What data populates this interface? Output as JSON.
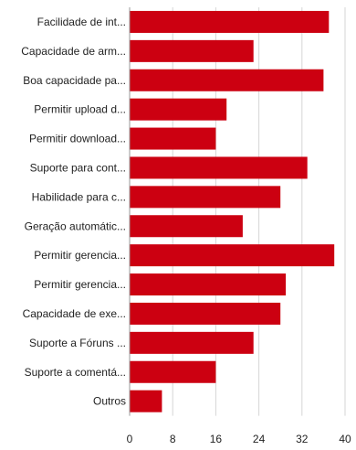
{
  "chart_data": {
    "type": "bar",
    "orientation": "horizontal",
    "categories": [
      "Facilidade de int...",
      "Capacidade de arm...",
      "Boa capacidade pa...",
      "Permitir upload d...",
      "Permitir download...",
      "Suporte para cont...",
      "Habilidade para c...",
      "Geração automátic...",
      "Permitir gerencia...",
      "Permitir gerencia...",
      "Capacidade de exe...",
      "Suporte a Fóruns ...",
      "Suporte a comentá...",
      "Outros"
    ],
    "values": [
      37,
      23,
      36,
      18,
      16,
      33,
      28,
      21,
      38,
      29,
      28,
      23,
      16,
      6
    ],
    "xlim": [
      0,
      40
    ],
    "xticks": [
      0,
      8,
      16,
      24,
      32,
      40
    ],
    "bar_color": "#cc0011",
    "grid": true,
    "legend": "none"
  }
}
